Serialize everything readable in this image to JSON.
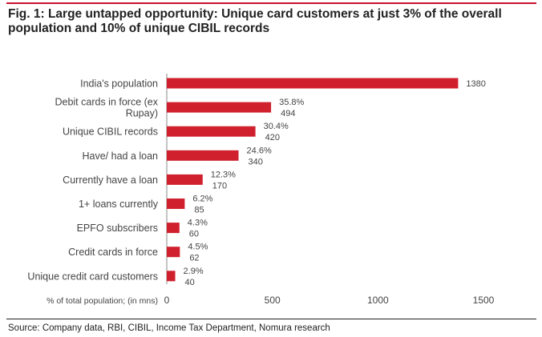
{
  "title": "Fig. 1: Large untapped opportunity: Unique card customers at just 3% of the overall population and 10% of unique CIBIL records",
  "source": "Source: Company data, RBI, CIBIL, Income Tax Department, Nomura research",
  "colors": {
    "accent": "#c8102e",
    "bar": "#d0202e",
    "text": "#444444"
  },
  "chart_data": {
    "type": "bar",
    "orientation": "horizontal",
    "categories": [
      [
        "India's population"
      ],
      [
        "Debit cards in force (ex",
        "Rupay)"
      ],
      [
        "Unique CIBIL records"
      ],
      [
        "Have/ had a loan"
      ],
      [
        "Currently have a loan"
      ],
      [
        "1+ loans currently"
      ],
      [
        "EPFO subscribers"
      ],
      [
        "Credit cards in force"
      ],
      [
        "Unique credit card customers"
      ]
    ],
    "values": [
      1380,
      494,
      420,
      340,
      170,
      85,
      60,
      62,
      40
    ],
    "percent_labels": [
      "",
      "35.8%",
      "30.4%",
      "24.6%",
      "12.3%",
      "6.2%",
      "4.3%",
      "4.5%",
      "2.9%"
    ],
    "xlabel": "% of total population; (in mns)",
    "xlim": [
      0,
      1500
    ],
    "xticks": [
      0,
      500,
      1000,
      1500
    ],
    "grid": false,
    "legend": "none"
  }
}
